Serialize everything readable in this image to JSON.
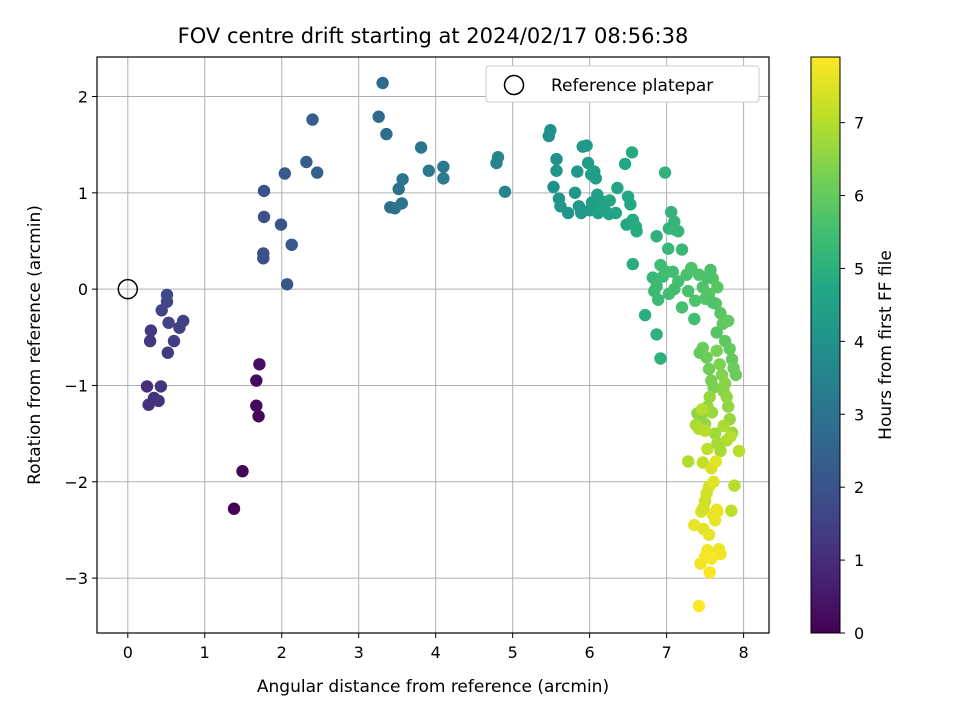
{
  "chart_data": {
    "type": "scatter",
    "title": "FOV centre drift starting at 2024/02/17 08:56:38",
    "xlabel": "Angular distance from reference (arcmin)",
    "ylabel": "Rotation from reference (arcmin)",
    "xlim": [
      -0.4,
      8.33
    ],
    "ylim": [
      -3.57,
      2.41
    ],
    "xticks": [
      0,
      1,
      2,
      3,
      4,
      5,
      6,
      7,
      8
    ],
    "yticks": [
      -3,
      -2,
      -1,
      0,
      1,
      2
    ],
    "xtick_labels": [
      "0",
      "1",
      "2",
      "3",
      "4",
      "5",
      "6",
      "7",
      "8"
    ],
    "ytick_labels": [
      "−3",
      "−2",
      "−1",
      "0",
      "1",
      "2"
    ],
    "grid": true,
    "legend": {
      "position": "top-right",
      "entries": [
        "Reference platepar"
      ]
    },
    "reference_point": {
      "x": 0,
      "y": 0
    },
    "colorbar": {
      "label": "Hours from first FF file",
      "min": 0,
      "max": 7.9,
      "colormap": "viridis",
      "ticks": [
        0,
        1,
        2,
        3,
        4,
        5,
        6,
        7
      ],
      "tick_labels": [
        "0",
        "1",
        "2",
        "3",
        "4",
        "5",
        "6",
        "7"
      ]
    },
    "points": [
      [
        1.38,
        -2.28,
        0.0
      ],
      [
        1.49,
        -1.89,
        0.06
      ],
      [
        1.7,
        -1.32,
        0.12
      ],
      [
        1.67,
        -1.21,
        0.18
      ],
      [
        1.67,
        -0.95,
        0.24
      ],
      [
        1.71,
        -0.78,
        0.3
      ],
      [
        0.25,
        -1.01,
        1.0
      ],
      [
        0.27,
        -1.2,
        1.05
      ],
      [
        0.34,
        -1.13,
        1.1
      ],
      [
        0.4,
        -1.16,
        1.15
      ],
      [
        0.43,
        -1.01,
        1.2
      ],
      [
        0.29,
        -0.54,
        1.25
      ],
      [
        0.3,
        -0.43,
        1.3
      ],
      [
        0.52,
        -0.66,
        1.35
      ],
      [
        0.6,
        -0.54,
        1.4
      ],
      [
        0.67,
        -0.4,
        1.45
      ],
      [
        0.72,
        -0.33,
        1.5
      ],
      [
        0.53,
        -0.35,
        1.55
      ],
      [
        0.44,
        -0.22,
        1.6
      ],
      [
        0.51,
        -0.13,
        1.65
      ],
      [
        0.51,
        -0.06,
        1.7
      ],
      [
        1.76,
        0.32,
        1.9
      ],
      [
        1.76,
        0.37,
        1.92
      ],
      [
        1.77,
        0.75,
        1.95
      ],
      [
        1.77,
        1.02,
        2.0
      ],
      [
        1.99,
        0.67,
        2.05
      ],
      [
        2.07,
        0.05,
        2.1
      ],
      [
        2.13,
        0.46,
        2.15
      ],
      [
        2.04,
        1.2,
        2.2
      ],
      [
        2.32,
        1.32,
        2.3
      ],
      [
        2.4,
        1.76,
        2.35
      ],
      [
        2.46,
        1.21,
        2.4
      ],
      [
        3.26,
        1.79,
        2.7
      ],
      [
        3.31,
        2.14,
        2.75
      ],
      [
        3.36,
        1.61,
        2.8
      ],
      [
        3.41,
        0.85,
        2.85
      ],
      [
        3.47,
        0.84,
        2.9
      ],
      [
        3.52,
        1.04,
        2.95
      ],
      [
        3.56,
        0.89,
        3.0
      ],
      [
        3.57,
        1.14,
        3.05
      ],
      [
        3.81,
        1.47,
        3.1
      ],
      [
        3.91,
        1.23,
        3.15
      ],
      [
        4.1,
        1.27,
        3.2
      ],
      [
        4.1,
        1.15,
        3.25
      ],
      [
        4.79,
        1.31,
        3.5
      ],
      [
        4.81,
        1.37,
        3.55
      ],
      [
        4.9,
        1.01,
        3.6
      ],
      [
        5.47,
        1.59,
        3.9
      ],
      [
        5.49,
        1.65,
        3.95
      ],
      [
        5.53,
        1.06,
        4.0
      ],
      [
        5.57,
        1.35,
        4.0
      ],
      [
        5.57,
        1.23,
        4.05
      ],
      [
        5.6,
        0.94,
        4.05
      ],
      [
        5.62,
        0.86,
        4.1
      ],
      [
        5.72,
        0.79,
        4.1
      ],
      [
        5.81,
        1.0,
        4.15
      ],
      [
        5.84,
        1.22,
        4.15
      ],
      [
        5.86,
        0.86,
        4.2
      ],
      [
        5.89,
        0.79,
        4.2
      ],
      [
        5.91,
        1.48,
        4.25
      ],
      [
        5.96,
        1.49,
        4.25
      ],
      [
        5.98,
        1.31,
        4.3
      ],
      [
        6.0,
        0.82,
        4.3
      ],
      [
        6.02,
        1.19,
        4.35
      ],
      [
        6.03,
        0.9,
        4.35
      ],
      [
        6.06,
        1.22,
        4.4
      ],
      [
        6.08,
        1.15,
        4.4
      ],
      [
        6.1,
        0.98,
        4.45
      ],
      [
        6.11,
        0.79,
        4.45
      ],
      [
        6.15,
        0.83,
        4.5
      ],
      [
        6.16,
        0.91,
        4.5
      ],
      [
        6.19,
        0.83,
        4.55
      ],
      [
        6.25,
        0.78,
        4.55
      ],
      [
        6.26,
        0.92,
        4.6
      ],
      [
        6.34,
        0.79,
        4.6
      ],
      [
        6.36,
        1.05,
        4.65
      ],
      [
        6.46,
        1.3,
        4.7
      ],
      [
        6.48,
        0.67,
        4.7
      ],
      [
        6.5,
        0.96,
        4.75
      ],
      [
        6.53,
        0.88,
        4.75
      ],
      [
        6.55,
        1.42,
        4.8
      ],
      [
        6.56,
        0.72,
        4.8
      ],
      [
        6.6,
        0.65,
        4.85
      ],
      [
        6.61,
        0.6,
        4.85
      ],
      [
        6.56,
        0.26,
        4.9
      ],
      [
        6.72,
        -0.27,
        4.95
      ],
      [
        6.87,
        -0.47,
        5.0
      ],
      [
        6.92,
        -0.72,
        5.05
      ],
      [
        6.87,
        0.55,
        5.05
      ],
      [
        6.98,
        1.21,
        5.1
      ],
      [
        7.03,
        0.63,
        5.1
      ],
      [
        7.06,
        0.8,
        5.15
      ],
      [
        7.1,
        0.7,
        5.15
      ],
      [
        7.1,
        0.62,
        5.2
      ],
      [
        7.15,
        0.6,
        5.2
      ],
      [
        7.02,
        0.42,
        5.25
      ],
      [
        7.2,
        0.41,
        5.25
      ],
      [
        6.82,
        0.12,
        5.3
      ],
      [
        6.84,
        -0.02,
        5.3
      ],
      [
        6.87,
        0.03,
        5.35
      ],
      [
        6.89,
        -0.11,
        5.35
      ],
      [
        6.92,
        0.25,
        5.4
      ],
      [
        6.95,
        0.13,
        5.4
      ],
      [
        7.0,
        0.18,
        5.45
      ],
      [
        7.03,
        -0.05,
        5.45
      ],
      [
        7.08,
        0.18,
        5.5
      ],
      [
        7.1,
        0.0,
        5.5
      ],
      [
        7.15,
        0.08,
        5.55
      ],
      [
        7.2,
        -0.19,
        5.55
      ],
      [
        7.26,
        0.15,
        5.6
      ],
      [
        7.28,
        -0.02,
        5.6
      ],
      [
        7.32,
        0.22,
        5.65
      ],
      [
        7.37,
        -0.12,
        5.65
      ],
      [
        7.42,
        0.15,
        5.7
      ],
      [
        7.47,
        0.02,
        5.7
      ],
      [
        7.5,
        -0.1,
        5.75
      ],
      [
        7.55,
        -0.05,
        5.75
      ],
      [
        7.6,
        0.11,
        5.8
      ],
      [
        7.64,
        -0.15,
        5.8
      ],
      [
        7.66,
        0.02,
        5.85
      ],
      [
        7.7,
        -0.25,
        5.85
      ],
      [
        7.73,
        -0.36,
        5.9
      ],
      [
        7.76,
        -0.54,
        5.9
      ],
      [
        7.8,
        -0.33,
        5.95
      ],
      [
        7.82,
        -0.62,
        6.0
      ],
      [
        7.85,
        -0.73,
        6.0
      ],
      [
        7.87,
        -0.82,
        6.05
      ],
      [
        7.9,
        -0.89,
        6.1
      ],
      [
        7.36,
        -0.31,
        5.5
      ],
      [
        7.53,
        0.12,
        5.6
      ],
      [
        7.57,
        0.2,
        5.65
      ],
      [
        7.6,
        -0.14,
        5.7
      ],
      [
        7.65,
        -0.45,
        5.8
      ],
      [
        7.43,
        -0.66,
        6.0
      ],
      [
        7.47,
        -0.61,
        6.05
      ],
      [
        7.52,
        -0.71,
        6.1
      ],
      [
        7.55,
        -0.83,
        6.2
      ],
      [
        7.58,
        -0.95,
        6.25
      ],
      [
        7.61,
        -1.02,
        6.3
      ],
      [
        7.65,
        -0.64,
        6.3
      ],
      [
        7.69,
        -0.78,
        6.35
      ],
      [
        7.72,
        -0.89,
        6.4
      ],
      [
        7.74,
        -1.06,
        6.45
      ],
      [
        7.76,
        -0.98,
        6.5
      ],
      [
        7.78,
        -1.12,
        6.55
      ],
      [
        7.8,
        -1.22,
        6.6
      ],
      [
        7.82,
        -1.35,
        6.65
      ],
      [
        7.85,
        -1.49,
        6.7
      ],
      [
        7.4,
        -1.29,
        6.5
      ],
      [
        7.45,
        -1.34,
        6.55
      ],
      [
        7.5,
        -1.4,
        6.6
      ],
      [
        7.53,
        -1.22,
        6.6
      ],
      [
        7.56,
        -1.12,
        6.65
      ],
      [
        7.59,
        -1.28,
        6.7
      ],
      [
        7.63,
        -1.5,
        6.75
      ],
      [
        7.66,
        -1.6,
        6.8
      ],
      [
        7.7,
        -1.68,
        6.85
      ],
      [
        7.74,
        -1.42,
        6.9
      ],
      [
        7.78,
        -1.57,
        6.95
      ],
      [
        7.83,
        -1.53,
        7.0
      ],
      [
        7.88,
        -2.04,
        7.0
      ],
      [
        7.94,
        -1.68,
        7.05
      ],
      [
        7.84,
        -2.3,
        7.1
      ],
      [
        7.38,
        -1.41,
        6.9
      ],
      [
        7.42,
        -1.45,
        6.95
      ],
      [
        7.46,
        -1.25,
        7.0
      ],
      [
        7.5,
        -1.47,
        7.05
      ],
      [
        7.53,
        -1.66,
        7.1
      ],
      [
        7.28,
        -1.79,
        6.95
      ],
      [
        7.47,
        -1.8,
        7.15
      ],
      [
        7.5,
        -2.2,
        7.3
      ],
      [
        7.52,
        -2.12,
        7.35
      ],
      [
        7.55,
        -2.05,
        7.4
      ],
      [
        7.58,
        -1.86,
        7.45
      ],
      [
        7.61,
        -2.0,
        7.5
      ],
      [
        7.64,
        -1.79,
        7.55
      ],
      [
        7.48,
        -2.49,
        7.55
      ],
      [
        7.55,
        -2.55,
        7.6
      ],
      [
        7.6,
        -2.34,
        7.6
      ],
      [
        7.63,
        -2.4,
        7.65
      ],
      [
        7.66,
        -2.31,
        7.7
      ],
      [
        7.68,
        -2.7,
        7.7
      ],
      [
        7.7,
        -2.75,
        7.75
      ],
      [
        7.36,
        -2.45,
        7.65
      ],
      [
        7.44,
        -2.85,
        7.75
      ],
      [
        7.5,
        -2.78,
        7.8
      ],
      [
        7.53,
        -2.71,
        7.8
      ],
      [
        7.56,
        -2.94,
        7.85
      ],
      [
        7.58,
        -2.8,
        7.85
      ],
      [
        7.42,
        -3.29,
        7.9
      ],
      [
        7.65,
        -2.29,
        7.65
      ],
      [
        7.45,
        -2.31,
        7.45
      ],
      [
        7.48,
        -2.27,
        7.4
      ]
    ]
  }
}
